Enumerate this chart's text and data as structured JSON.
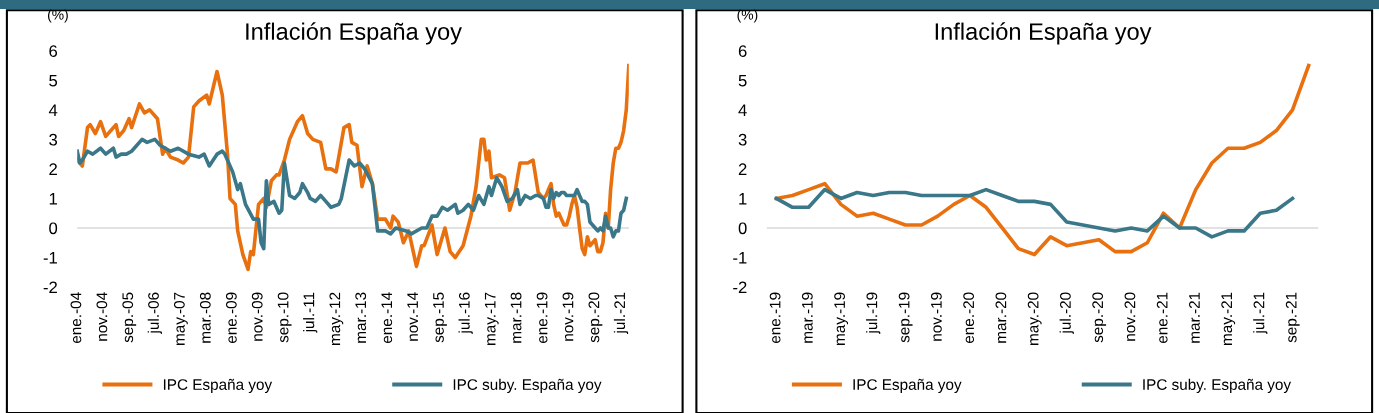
{
  "chart_data": [
    {
      "type": "line",
      "title": "Inflación España yoy",
      "ylabel": "(%)",
      "legend": "bottom",
      "grid": false,
      "marker": "none",
      "line_style": "solid",
      "xlim": [
        "2004-01",
        "2021-10"
      ],
      "xticks": [
        {
          "value": "2004-01",
          "label": "ene.-04"
        },
        {
          "value": "2004-11",
          "label": "nov.-04"
        },
        {
          "value": "2005-09",
          "label": "sep.-05"
        },
        {
          "value": "2006-07",
          "label": "jul.-06"
        },
        {
          "value": "2007-05",
          "label": "may.-07"
        },
        {
          "value": "2008-03",
          "label": "mar.-08"
        },
        {
          "value": "2009-01",
          "label": "ene.-09"
        },
        {
          "value": "2009-11",
          "label": "nov.-09"
        },
        {
          "value": "2010-09",
          "label": "sep.-10"
        },
        {
          "value": "2011-07",
          "label": "jul.-11"
        },
        {
          "value": "2012-05",
          "label": "may.-12"
        },
        {
          "value": "2013-03",
          "label": "mar.-13"
        },
        {
          "value": "2014-01",
          "label": "ene.-14"
        },
        {
          "value": "2014-11",
          "label": "nov.-14"
        },
        {
          "value": "2015-09",
          "label": "sep.-15"
        },
        {
          "value": "2016-07",
          "label": "jul.-16"
        },
        {
          "value": "2017-05",
          "label": "may.-17"
        },
        {
          "value": "2018-03",
          "label": "mar.-18"
        },
        {
          "value": "2019-01",
          "label": "ene.-19"
        },
        {
          "value": "2019-11",
          "label": "nov.-19"
        },
        {
          "value": "2020-09",
          "label": "sep.-20"
        },
        {
          "value": "2021-07",
          "label": "jul.-21"
        }
      ],
      "ylim": [
        -2,
        6
      ],
      "yticks": [
        -2,
        -1,
        0,
        1,
        2,
        3,
        4,
        5,
        6
      ],
      "ref_lines": [
        {
          "axis": "y",
          "value": 0,
          "color": "#d9d9d9"
        }
      ],
      "series": [
        {
          "name": "IPC España yoy",
          "color": "#e8700f",
          "x": [
            "2004-01",
            "2004-03",
            "2004-05",
            "2004-06",
            "2004-08",
            "2004-10",
            "2004-12",
            "2005-04",
            "2005-05",
            "2005-07",
            "2005-09",
            "2005-10",
            "2006-01",
            "2006-03",
            "2006-05",
            "2006-08",
            "2006-10",
            "2006-11",
            "2007-01",
            "2007-04",
            "2007-06",
            "2007-08",
            "2007-10",
            "2007-12",
            "2008-03",
            "2008-04",
            "2008-07",
            "2008-09",
            "2008-11",
            "2008-12",
            "2009-02",
            "2009-03",
            "2009-05",
            "2009-07",
            "2009-08",
            "2009-09",
            "2009-11",
            "2010-01",
            "2010-02",
            "2010-04",
            "2010-06",
            "2010-07",
            "2010-09",
            "2010-11",
            "2011-02",
            "2011-04",
            "2011-06",
            "2011-08",
            "2011-11",
            "2012-01",
            "2012-03",
            "2012-05",
            "2012-08",
            "2012-10",
            "2012-11",
            "2013-01",
            "2013-03",
            "2013-05",
            "2013-07",
            "2013-09",
            "2013-12",
            "2014-02",
            "2014-03",
            "2014-05",
            "2014-07",
            "2014-09",
            "2014-12",
            "2015-02",
            "2015-03",
            "2015-06",
            "2015-08",
            "2015-11",
            "2016-01",
            "2016-03",
            "2016-06",
            "2016-09",
            "2016-11",
            "2017-01",
            "2017-02",
            "2017-03",
            "2017-04",
            "2017-05",
            "2017-08",
            "2017-10",
            "2017-12",
            "2018-02",
            "2018-04",
            "2018-06",
            "2018-07",
            "2018-09",
            "2018-11",
            "2019-01",
            "2019-02",
            "2019-03",
            "2019-04",
            "2019-05",
            "2019-06",
            "2019-07",
            "2019-08",
            "2019-09",
            "2019-10",
            "2019-11",
            "2019-12",
            "2020-01",
            "2020-02",
            "2020-03",
            "2020-04",
            "2020-05",
            "2020-06",
            "2020-07",
            "2020-08",
            "2020-09",
            "2020-10",
            "2020-11",
            "2020-12",
            "2021-01",
            "2021-02",
            "2021-03",
            "2021-04",
            "2021-05",
            "2021-06",
            "2021-07",
            "2021-08",
            "2021-09",
            "2021-10"
          ],
          "values": [
            2.3,
            2.1,
            3.4,
            3.5,
            3.2,
            3.6,
            3.1,
            3.5,
            3.1,
            3.3,
            3.7,
            3.4,
            4.2,
            3.9,
            4.0,
            3.7,
            2.5,
            2.7,
            2.4,
            2.3,
            2.2,
            2.4,
            4.1,
            4.3,
            4.5,
            4.2,
            5.3,
            4.5,
            2.5,
            1.0,
            0.8,
            -0.1,
            -0.9,
            -1.4,
            -0.8,
            -0.9,
            0.8,
            1.0,
            0.7,
            1.6,
            1.8,
            1.8,
            2.3,
            3.0,
            3.6,
            3.8,
            3.2,
            3.0,
            2.9,
            2.0,
            2.0,
            1.9,
            3.4,
            3.5,
            2.9,
            2.8,
            1.4,
            2.1,
            1.5,
            0.3,
            0.3,
            0.0,
            0.4,
            0.2,
            -0.5,
            -0.1,
            -1.3,
            -0.6,
            -0.6,
            0.1,
            -0.9,
            0.0,
            -0.8,
            -1.0,
            -0.6,
            0.4,
            1.4,
            3.0,
            3.0,
            2.3,
            2.6,
            1.7,
            1.8,
            1.7,
            0.6,
            1.2,
            2.2,
            2.2,
            2.2,
            2.3,
            1.2,
            1.0,
            1.1,
            1.3,
            1.5,
            0.8,
            0.4,
            0.5,
            0.3,
            0.1,
            0.1,
            0.4,
            0.8,
            1.1,
            0.7,
            0.0,
            -0.7,
            -0.9,
            -0.3,
            -0.6,
            -0.5,
            -0.4,
            -0.8,
            -0.8,
            -0.5,
            0.5,
            0.0,
            1.3,
            2.2,
            2.7,
            2.7,
            2.9,
            3.3,
            4.0,
            5.5
          ]
        },
        {
          "name": "IPC suby. España yoy",
          "color": "#3a7789",
          "x": [
            "2004-01",
            "2004-02",
            "2004-03",
            "2004-05",
            "2004-07",
            "2004-10",
            "2004-12",
            "2005-03",
            "2005-04",
            "2005-06",
            "2005-08",
            "2005-10",
            "2006-02",
            "2006-04",
            "2006-07",
            "2006-09",
            "2007-01",
            "2007-04",
            "2007-08",
            "2007-12",
            "2008-02",
            "2008-04",
            "2008-07",
            "2008-09",
            "2008-10",
            "2009-01",
            "2009-03",
            "2009-04",
            "2009-06",
            "2009-09",
            "2009-11",
            "2009-12",
            "2010-01",
            "2010-02",
            "2010-03",
            "2010-05",
            "2010-07",
            "2010-08",
            "2010-09",
            "2010-11",
            "2011-01",
            "2011-03",
            "2011-04",
            "2011-06",
            "2011-07",
            "2011-09",
            "2011-11",
            "2012-01",
            "2012-03",
            "2012-06",
            "2012-07",
            "2012-10",
            "2012-12",
            "2013-02",
            "2013-04",
            "2013-07",
            "2013-09",
            "2013-12",
            "2014-02",
            "2014-04",
            "2014-08",
            "2014-10",
            "2015-02",
            "2015-04",
            "2015-06",
            "2015-08",
            "2015-10",
            "2015-12",
            "2016-03",
            "2016-04",
            "2016-06",
            "2016-08",
            "2016-10",
            "2016-12",
            "2017-02",
            "2017-04",
            "2017-05",
            "2017-07",
            "2017-09",
            "2017-11",
            "2018-01",
            "2018-03",
            "2018-04",
            "2018-06",
            "2018-08",
            "2018-10",
            "2018-11",
            "2019-01",
            "2019-02",
            "2019-03",
            "2019-04",
            "2019-05",
            "2019-06",
            "2019-07",
            "2019-08",
            "2019-09",
            "2019-10",
            "2019-11",
            "2019-12",
            "2020-01",
            "2020-02",
            "2020-03",
            "2020-04",
            "2020-05",
            "2020-06",
            "2020-07",
            "2020-08",
            "2020-09",
            "2020-10",
            "2020-11",
            "2020-12",
            "2021-01",
            "2021-02",
            "2021-03",
            "2021-04",
            "2021-05",
            "2021-06",
            "2021-07",
            "2021-08",
            "2021-09"
          ],
          "values": [
            2.6,
            2.2,
            2.3,
            2.6,
            2.5,
            2.7,
            2.5,
            2.7,
            2.4,
            2.5,
            2.5,
            2.6,
            3.0,
            2.9,
            3.0,
            2.8,
            2.6,
            2.7,
            2.5,
            2.4,
            2.5,
            2.1,
            2.5,
            2.6,
            2.5,
            1.9,
            1.3,
            1.5,
            0.8,
            0.3,
            0.3,
            -0.5,
            -0.7,
            1.6,
            0.8,
            0.9,
            0.5,
            0.6,
            2.2,
            1.1,
            1.0,
            1.2,
            1.5,
            1.2,
            1.0,
            0.9,
            1.1,
            0.9,
            0.7,
            0.8,
            1.0,
            2.3,
            2.1,
            2.2,
            2.0,
            1.5,
            -0.1,
            -0.1,
            -0.2,
            0.0,
            -0.1,
            -0.2,
            0.0,
            0.0,
            0.4,
            0.4,
            0.7,
            0.6,
            0.8,
            0.5,
            0.6,
            0.8,
            0.6,
            1.1,
            0.8,
            1.4,
            1.1,
            1.7,
            1.4,
            0.9,
            1.0,
            1.3,
            0.8,
            1.1,
            1.0,
            1.1,
            1.1,
            1.0,
            0.7,
            0.7,
            1.3,
            1.0,
            1.2,
            1.1,
            1.2,
            1.2,
            1.1,
            1.1,
            1.1,
            1.1,
            1.3,
            1.1,
            0.9,
            0.9,
            0.8,
            0.2,
            0.1,
            0.0,
            -0.1,
            0.0,
            -0.1,
            0.4,
            0.0,
            0.0,
            -0.3,
            -0.1,
            -0.1,
            0.5,
            0.6,
            1.0
          ]
        }
      ]
    },
    {
      "type": "line",
      "title": "Inflación España yoy",
      "ylabel": "(%)",
      "legend": "bottom",
      "grid": false,
      "marker": "none",
      "line_style": "solid",
      "categories": [
        "ene.-19",
        null,
        "mar.-19",
        null,
        "may.-19",
        null,
        "jul.-19",
        null,
        "sep.-19",
        null,
        "nov.-19",
        null,
        "ene.-20",
        null,
        "mar.-20",
        null,
        "may.-20",
        null,
        "jul.-20",
        null,
        "sep.-20",
        null,
        "nov.-20",
        null,
        "ene.-21",
        null,
        "mar.-21",
        null,
        "may.-21",
        null,
        "jul.-21",
        null,
        "sep.-21",
        null
      ],
      "ylim": [
        -2,
        6
      ],
      "yticks": [
        -2,
        -1,
        0,
        1,
        2,
        3,
        4,
        5,
        6
      ],
      "ref_lines": [
        {
          "axis": "y",
          "value": 0,
          "color": "#d9d9d9"
        }
      ],
      "series": [
        {
          "name": "IPC España yoy",
          "color": "#e8700f",
          "values": [
            1.0,
            1.1,
            1.3,
            1.5,
            0.8,
            0.4,
            0.5,
            0.3,
            0.1,
            0.1,
            0.4,
            0.8,
            1.1,
            0.7,
            0.0,
            -0.7,
            -0.9,
            -0.3,
            -0.6,
            -0.5,
            -0.4,
            -0.8,
            -0.8,
            -0.5,
            0.5,
            0.0,
            1.3,
            2.2,
            2.7,
            2.7,
            2.9,
            3.3,
            4.0,
            5.5
          ]
        },
        {
          "name": "IPC suby. España yoy",
          "color": "#3a7789",
          "values": [
            1.0,
            0.7,
            0.7,
            1.3,
            1.0,
            1.2,
            1.1,
            1.2,
            1.2,
            1.1,
            1.1,
            1.1,
            1.1,
            1.3,
            1.1,
            0.9,
            0.9,
            0.8,
            0.2,
            0.1,
            0.0,
            -0.1,
            0.0,
            -0.1,
            0.4,
            0.0,
            0.0,
            -0.3,
            -0.1,
            -0.1,
            0.5,
            0.6,
            1.0,
            null
          ]
        }
      ]
    }
  ]
}
